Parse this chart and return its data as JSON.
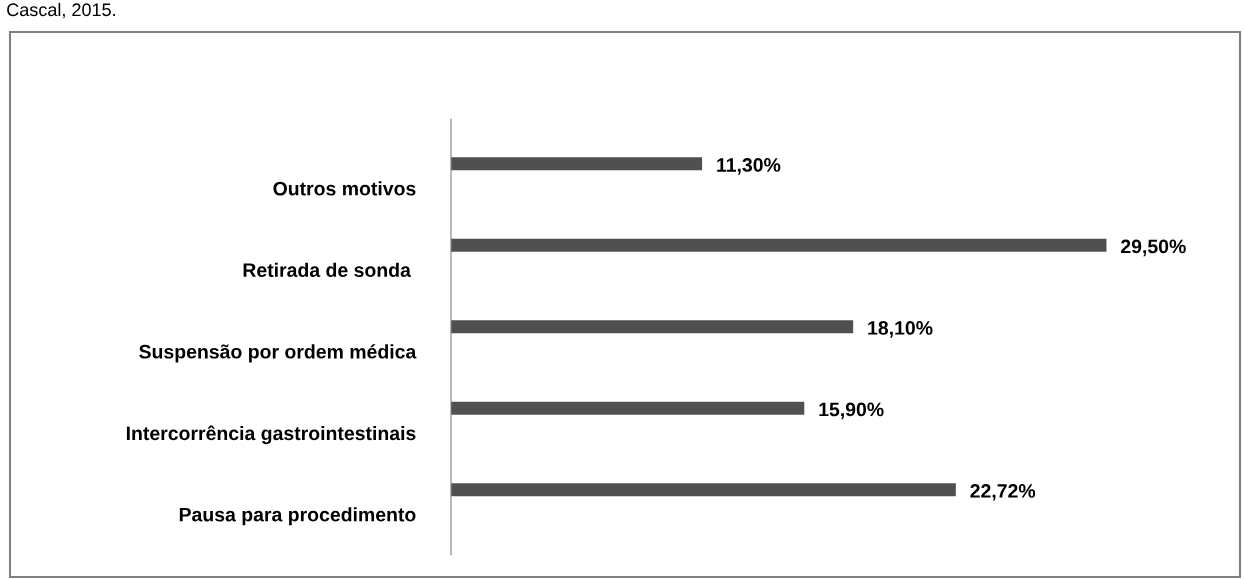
{
  "chart_data": {
    "type": "bar",
    "orientation": "horizontal",
    "categories": [
      "Outros motivos",
      "Retirada de sonda ",
      "Suspensão por ordem médica",
      "Intercorrência gastrointestinais",
      "Pausa para procedimento"
    ],
    "values": [
      11.3,
      29.5,
      18.1,
      15.9,
      22.72
    ],
    "value_labels": [
      "11,30%",
      "29,50%",
      "18,10%",
      "15,90%",
      "22,72%"
    ],
    "color": "#505050",
    "annotations": [
      "Cascal, 2015."
    ],
    "grid": false,
    "legend": false
  }
}
